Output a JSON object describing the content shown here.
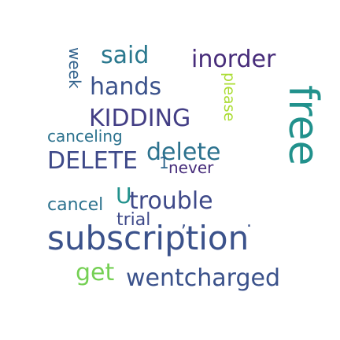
{
  "words": [
    {
      "text": "subscription",
      "color": "#3b528b"
    },
    {
      "text": "free",
      "color": "#21918c"
    },
    {
      "text": "wentcharged",
      "color": "#3b528b"
    },
    {
      "text": "trouble",
      "color": "#3e4989"
    },
    {
      "text": "DELETE",
      "color": "#3e4989"
    },
    {
      "text": "delete",
      "color": "#2c728e"
    },
    {
      "text": "KIDDING",
      "color": "#433e85"
    },
    {
      "text": "hands",
      "color": "#3b528b"
    },
    {
      "text": "said",
      "color": "#2a788e"
    },
    {
      "text": "inorder",
      "color": "#472c7a"
    },
    {
      "text": "get",
      "color": "#75d054"
    },
    {
      "text": "cancel",
      "color": "#2c728e"
    },
    {
      "text": "canceling",
      "color": "#2c728e"
    },
    {
      "text": "trial",
      "color": "#3e4989"
    },
    {
      "text": "never",
      "color": "#472d7b"
    },
    {
      "text": "please",
      "color": "#aadc32"
    },
    {
      "text": "week",
      "color": "#33638d"
    },
    {
      "text": "U",
      "color": "#21918c"
    },
    {
      "text": ",",
      "color": "#3b528b"
    },
    {
      "text": ".",
      "color": "#3b528b"
    },
    {
      "text": "1",
      "color": "#31688e"
    }
  ]
}
